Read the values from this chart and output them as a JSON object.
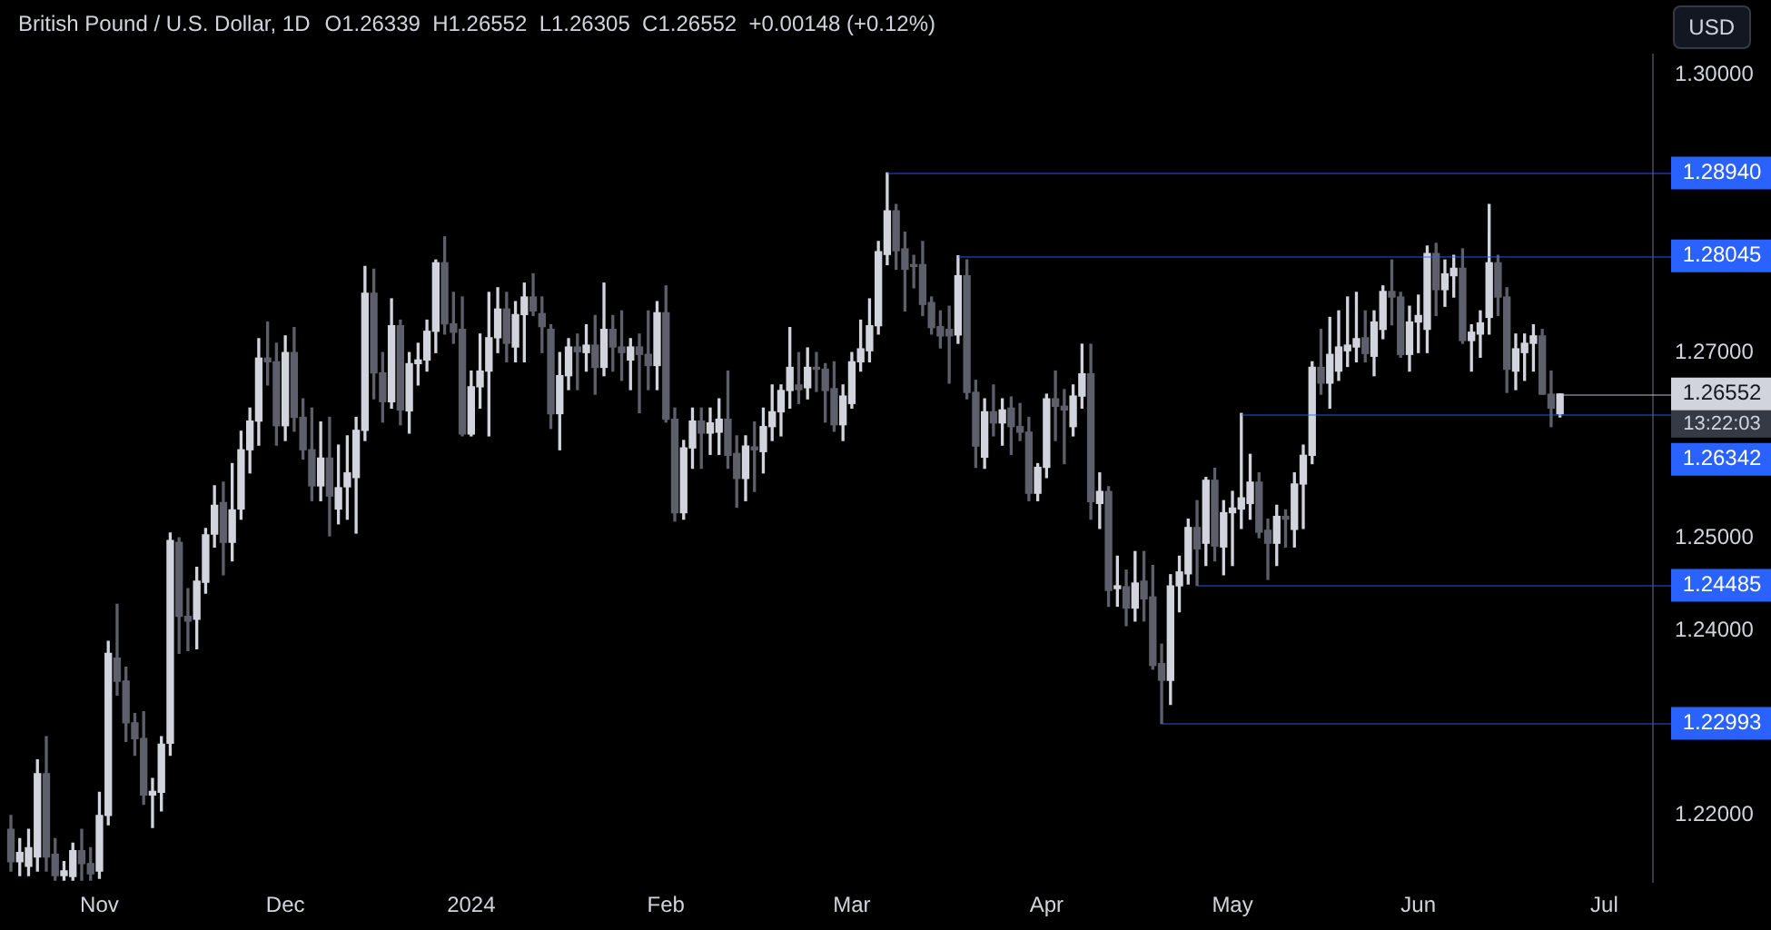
{
  "chart_data": {
    "type": "candlestick",
    "title": "British Pound / U.S. Dollar, 1D",
    "subtitle": "O1.26339  H1.26552  L1.26305  C1.26552  +0.00148 (+0.12%)",
    "ylabel": "USD",
    "categories": [
      null,
      null,
      null,
      null,
      null,
      null,
      null,
      null,
      null,
      null,
      "Nov",
      null,
      null,
      null,
      null,
      null,
      null,
      null,
      null,
      null,
      null,
      null,
      null,
      null,
      null,
      null,
      null,
      null,
      null,
      null,
      null,
      "Dec",
      null,
      null,
      null,
      null,
      null,
      null,
      null,
      null,
      null,
      null,
      null,
      null,
      null,
      null,
      null,
      null,
      null,
      null,
      null,
      null,
      "2024",
      null,
      null,
      null,
      null,
      null,
      null,
      null,
      null,
      null,
      null,
      null,
      null,
      null,
      null,
      null,
      null,
      null,
      null,
      null,
      null,
      null,
      "Feb",
      null,
      null,
      null,
      null,
      null,
      null,
      null,
      null,
      null,
      null,
      null,
      null,
      null,
      null,
      null,
      null,
      null,
      null,
      null,
      null,
      "Mar",
      null,
      null,
      null,
      null,
      null,
      null,
      null,
      null,
      null,
      null,
      null,
      null,
      null,
      null,
      null,
      null,
      null,
      null,
      null,
      null,
      null,
      "Apr",
      null,
      null,
      null,
      null,
      null,
      null,
      null,
      null,
      null,
      null,
      null,
      null,
      null,
      null,
      null,
      null,
      null,
      null,
      null,
      null,
      "May",
      null,
      null,
      null,
      null,
      null,
      null,
      null,
      null,
      null,
      null,
      null,
      null,
      null,
      null,
      null,
      null,
      null,
      null,
      null,
      null,
      "Jun",
      null,
      null,
      null,
      null,
      null,
      null,
      null,
      null,
      null,
      null,
      null,
      null,
      null,
      null,
      null,
      null,
      null,
      null,
      null,
      null,
      "Jul",
      null,
      null,
      null,
      null,
      null
    ],
    "ohlc": [
      [
        1.2185,
        1.22,
        1.214,
        1.215
      ],
      [
        1.215,
        1.2175,
        1.2135,
        1.216
      ],
      [
        1.2145,
        1.2185,
        1.2135,
        1.2165
      ],
      [
        1.2155,
        1.226,
        1.214,
        1.2245
      ],
      [
        1.2245,
        1.2285,
        1.214,
        1.2155
      ],
      [
        1.2158,
        1.2175,
        1.213,
        1.2135
      ],
      [
        1.2135,
        1.215,
        1.213,
        1.214
      ],
      [
        1.2134,
        1.217,
        1.213,
        1.2162
      ],
      [
        1.2162,
        1.2185,
        1.213,
        1.2148
      ],
      [
        1.2148,
        1.2165,
        1.213,
        1.2137
      ],
      [
        1.214,
        1.2225,
        1.2132,
        1.22
      ],
      [
        1.22,
        1.2388,
        1.219,
        1.2375
      ],
      [
        1.237,
        1.2428,
        1.233,
        1.2345
      ],
      [
        1.2345,
        1.236,
        1.228,
        1.23
      ],
      [
        1.23,
        1.231,
        1.2265,
        1.2283
      ],
      [
        1.2283,
        1.2312,
        1.2212,
        1.2222
      ],
      [
        1.2222,
        1.224,
        1.2187,
        1.2226
      ],
      [
        1.2225,
        1.2285,
        1.2205,
        1.2277
      ],
      [
        1.2278,
        1.2505,
        1.2265,
        1.2497
      ],
      [
        1.2495,
        1.25,
        1.2375,
        1.2415
      ],
      [
        1.2415,
        1.2445,
        1.2378,
        1.241
      ],
      [
        1.2412,
        1.2468,
        1.238,
        1.2453
      ],
      [
        1.2452,
        1.251,
        1.244,
        1.2503
      ],
      [
        1.2504,
        1.2556,
        1.249,
        1.2535
      ],
      [
        1.2538,
        1.256,
        1.246,
        1.2495
      ],
      [
        1.2495,
        1.258,
        1.2475,
        1.253
      ],
      [
        1.2531,
        1.2615,
        1.252,
        1.2595
      ],
      [
        1.2595,
        1.264,
        1.257,
        1.2626
      ],
      [
        1.2626,
        1.2715,
        1.26,
        1.2694
      ],
      [
        1.2694,
        1.2733,
        1.2665,
        1.269
      ],
      [
        1.269,
        1.271,
        1.26,
        1.2621
      ],
      [
        1.2621,
        1.2718,
        1.2605,
        1.27
      ],
      [
        1.27,
        1.2727,
        1.2615,
        1.263
      ],
      [
        1.263,
        1.265,
        1.2585,
        1.2595
      ],
      [
        1.2595,
        1.264,
        1.254,
        1.2556
      ],
      [
        1.2556,
        1.2625,
        1.254,
        1.2586
      ],
      [
        1.2586,
        1.263,
        1.2502,
        1.2545
      ],
      [
        1.2531,
        1.26,
        1.2515,
        1.2554
      ],
      [
        1.2555,
        1.261,
        1.252,
        1.257
      ],
      [
        1.2565,
        1.263,
        1.2505,
        1.2616
      ],
      [
        1.2616,
        1.2793,
        1.2605,
        1.2764
      ],
      [
        1.2764,
        1.279,
        1.265,
        1.2678
      ],
      [
        1.2678,
        1.27,
        1.2625,
        1.2647
      ],
      [
        1.2647,
        1.2758,
        1.264,
        1.2729
      ],
      [
        1.2729,
        1.2735,
        1.2622,
        1.2638
      ],
      [
        1.2637,
        1.27,
        1.2613,
        1.2688
      ],
      [
        1.2688,
        1.271,
        1.2665,
        1.2692
      ],
      [
        1.2692,
        1.2735,
        1.268,
        1.2723
      ],
      [
        1.2723,
        1.28,
        1.27,
        1.2797
      ],
      [
        1.2797,
        1.2825,
        1.272,
        1.2731
      ],
      [
        1.2731,
        1.2765,
        1.271,
        1.2722
      ],
      [
        1.2725,
        1.276,
        1.261,
        1.2612
      ],
      [
        1.2612,
        1.268,
        1.261,
        1.2663
      ],
      [
        1.2663,
        1.272,
        1.264,
        1.268
      ],
      [
        1.268,
        1.2765,
        1.261,
        1.2716
      ],
      [
        1.2716,
        1.277,
        1.27,
        1.2747
      ],
      [
        1.2747,
        1.2765,
        1.269,
        1.271
      ],
      [
        1.2706,
        1.2755,
        1.269,
        1.2741
      ],
      [
        1.2741,
        1.2775,
        1.269,
        1.276
      ],
      [
        1.276,
        1.2785,
        1.274,
        1.2745
      ],
      [
        1.2742,
        1.276,
        1.27,
        1.2728
      ],
      [
        1.2725,
        1.273,
        1.2618,
        1.2634
      ],
      [
        1.2634,
        1.27,
        1.2595,
        1.2675
      ],
      [
        1.2675,
        1.2715,
        1.266,
        1.2706
      ],
      [
        1.2706,
        1.272,
        1.266,
        1.2701
      ],
      [
        1.27,
        1.273,
        1.268,
        1.2708
      ],
      [
        1.2708,
        1.274,
        1.2655,
        1.2684
      ],
      [
        1.2684,
        1.2775,
        1.2675,
        1.2725
      ],
      [
        1.2725,
        1.274,
        1.268,
        1.2706
      ],
      [
        1.2706,
        1.2745,
        1.267,
        1.27
      ],
      [
        1.2692,
        1.2715,
        1.266,
        1.2706
      ],
      [
        1.2706,
        1.272,
        1.2635,
        1.2698
      ],
      [
        1.2698,
        1.2745,
        1.266,
        1.2686
      ],
      [
        1.2686,
        1.2755,
        1.266,
        1.2743
      ],
      [
        1.2743,
        1.2772,
        1.2625,
        1.2628
      ],
      [
        1.2628,
        1.264,
        1.2518,
        1.2527
      ],
      [
        1.2527,
        1.2605,
        1.252,
        1.2597
      ],
      [
        1.2597,
        1.264,
        1.2575,
        1.2626
      ],
      [
        1.2626,
        1.264,
        1.2575,
        1.2613
      ],
      [
        1.2613,
        1.264,
        1.259,
        1.2624
      ],
      [
        1.2614,
        1.265,
        1.259,
        1.2628
      ],
      [
        1.2628,
        1.268,
        1.2575,
        1.2589
      ],
      [
        1.2591,
        1.261,
        1.2533,
        1.2564
      ],
      [
        1.2564,
        1.261,
        1.254,
        1.2599
      ],
      [
        1.2598,
        1.2625,
        1.255,
        1.2595
      ],
      [
        1.2593,
        1.264,
        1.257,
        1.262
      ],
      [
        1.262,
        1.2665,
        1.2605,
        1.2636
      ],
      [
        1.2636,
        1.2665,
        1.261,
        1.2659
      ],
      [
        1.2659,
        1.2727,
        1.264,
        1.2684
      ],
      [
        1.2665,
        1.27,
        1.2645,
        1.266
      ],
      [
        1.2662,
        1.2705,
        1.265,
        1.2684
      ],
      [
        1.2684,
        1.27,
        1.2658,
        1.2682
      ],
      [
        1.2682,
        1.2688,
        1.2625,
        1.2659
      ],
      [
        1.2661,
        1.269,
        1.2615,
        1.2622
      ],
      [
        1.2622,
        1.2665,
        1.2605,
        1.2653
      ],
      [
        1.2645,
        1.27,
        1.264,
        1.269
      ],
      [
        1.269,
        1.2735,
        1.268,
        1.2704
      ],
      [
        1.2702,
        1.2758,
        1.269,
        1.2729
      ],
      [
        1.2729,
        1.282,
        1.272,
        1.2809
      ],
      [
        1.2806,
        1.2894,
        1.2795,
        1.2853
      ],
      [
        1.2853,
        1.286,
        1.279,
        1.281
      ],
      [
        1.2812,
        1.283,
        1.2745,
        1.279
      ],
      [
        1.2795,
        1.2805,
        1.277,
        1.2793
      ],
      [
        1.2795,
        1.282,
        1.274,
        1.2752
      ],
      [
        1.2754,
        1.276,
        1.272,
        1.2727
      ],
      [
        1.2728,
        1.2745,
        1.2705,
        1.2718
      ],
      [
        1.2725,
        1.275,
        1.2667,
        1.2718
      ],
      [
        1.2719,
        1.28045,
        1.271,
        1.2783
      ],
      [
        1.2783,
        1.28,
        1.265,
        1.2657
      ],
      [
        1.2657,
        1.267,
        1.2576,
        1.2599
      ],
      [
        1.2587,
        1.265,
        1.2575,
        1.2636
      ],
      [
        1.2636,
        1.2665,
        1.261,
        1.2624
      ],
      [
        1.2624,
        1.265,
        1.26,
        1.2638
      ],
      [
        1.264,
        1.2652,
        1.259,
        1.262
      ],
      [
        1.262,
        1.2645,
        1.2605,
        1.2614
      ],
      [
        1.2614,
        1.263,
        1.254,
        1.2548
      ],
      [
        1.2548,
        1.258,
        1.254,
        1.2576
      ],
      [
        1.2576,
        1.2655,
        1.2565,
        1.265
      ],
      [
        1.265,
        1.268,
        1.2605,
        1.2642
      ],
      [
        1.2642,
        1.266,
        1.258,
        1.2638
      ],
      [
        1.262,
        1.2665,
        1.261,
        1.2653
      ],
      [
        1.2653,
        1.2709,
        1.264,
        1.2677
      ],
      [
        1.2677,
        1.2709,
        1.252,
        1.2539
      ],
      [
        1.2537,
        1.257,
        1.251,
        1.255
      ],
      [
        1.255,
        1.2555,
        1.2426,
        1.2443
      ],
      [
        1.2445,
        1.248,
        1.2426,
        1.2448
      ],
      [
        1.2447,
        1.2465,
        1.2405,
        1.2424
      ],
      [
        1.2424,
        1.2485,
        1.241,
        1.2451
      ],
      [
        1.2453,
        1.2485,
        1.241,
        1.2434
      ],
      [
        1.2436,
        1.247,
        1.2358,
        1.2362
      ],
      [
        1.2364,
        1.2385,
        1.22993,
        1.2346
      ],
      [
        1.2346,
        1.246,
        1.232,
        1.2448
      ],
      [
        1.2448,
        1.248,
        1.242,
        1.2463
      ],
      [
        1.2461,
        1.252,
        1.245,
        1.2511
      ],
      [
        1.2511,
        1.254,
        1.24485,
        1.2488
      ],
      [
        1.2494,
        1.2565,
        1.247,
        1.2562
      ],
      [
        1.2562,
        1.2575,
        1.2475,
        1.2491
      ],
      [
        1.249,
        1.254,
        1.246,
        1.2527
      ],
      [
        1.2527,
        1.255,
        1.247,
        1.2532
      ],
      [
        1.2531,
        1.26342,
        1.251,
        1.2543
      ],
      [
        1.2537,
        1.259,
        1.252,
        1.256
      ],
      [
        1.256,
        1.257,
        1.25,
        1.2506
      ],
      [
        1.2508,
        1.252,
        1.2455,
        1.2494
      ],
      [
        1.2494,
        1.2535,
        1.247,
        1.2523
      ],
      [
        1.2523,
        1.253,
        1.249,
        1.252
      ],
      [
        1.2509,
        1.257,
        1.249,
        1.2558
      ],
      [
        1.2558,
        1.26,
        1.251,
        1.2589
      ],
      [
        1.2589,
        1.269,
        1.258,
        1.2684
      ],
      [
        1.2684,
        1.2725,
        1.2655,
        1.2667
      ],
      [
        1.2667,
        1.2738,
        1.264,
        1.2698
      ],
      [
        1.268,
        1.2745,
        1.267,
        1.2706
      ],
      [
        1.2702,
        1.276,
        1.2685,
        1.2708
      ],
      [
        1.2706,
        1.2765,
        1.269,
        1.2715
      ],
      [
        1.2716,
        1.2745,
        1.269,
        1.2699
      ],
      [
        1.2696,
        1.2745,
        1.2675,
        1.2733
      ],
      [
        1.2725,
        1.2772,
        1.2715,
        1.2766
      ],
      [
        1.2766,
        1.28,
        1.273,
        1.276
      ],
      [
        1.276,
        1.2765,
        1.2695,
        1.2698
      ],
      [
        1.2698,
        1.275,
        1.268,
        1.2733
      ],
      [
        1.2733,
        1.2762,
        1.27,
        1.274
      ],
      [
        1.2725,
        1.2815,
        1.27,
        1.2807
      ],
      [
        1.2807,
        1.2818,
        1.274,
        1.2768
      ],
      [
        1.2768,
        1.28,
        1.275,
        1.2785
      ],
      [
        1.2783,
        1.2805,
        1.276,
        1.2791
      ],
      [
        1.2791,
        1.2812,
        1.271,
        1.2713
      ],
      [
        1.2713,
        1.273,
        1.268,
        1.2722
      ],
      [
        1.272,
        1.2745,
        1.2695,
        1.2732
      ],
      [
        1.2738,
        1.286,
        1.272,
        1.2797
      ],
      [
        1.2797,
        1.2805,
        1.274,
        1.276
      ],
      [
        1.276,
        1.277,
        1.2657,
        1.2682
      ],
      [
        1.268,
        1.272,
        1.266,
        1.2704
      ],
      [
        1.27,
        1.272,
        1.267,
        1.271
      ],
      [
        1.271,
        1.273,
        1.268,
        1.2718
      ],
      [
        1.2718,
        1.2725,
        1.2655,
        1.2655
      ],
      [
        1.2655,
        1.268,
        1.262,
        1.264
      ],
      [
        1.26339,
        1.26552,
        1.26305,
        1.26552
      ],
      null,
      null,
      null,
      null,
      null,
      null,
      null,
      null,
      null,
      null
    ],
    "colors": [
      "#5d606b",
      "#d1d4dc",
      "#d1d4dc",
      "#d1d4dc",
      "#5d606b",
      "#5d606b",
      "#d1d4dc",
      "#d1d4dc",
      "#5d606b",
      "#5d606b",
      "#d1d4dc",
      "#d1d4dc",
      "#5d606b",
      "#5d606b",
      "#5d606b",
      "#5d606b",
      "#d1d4dc",
      "#d1d4dc",
      "#d1d4dc",
      "#5d606b",
      "#5d606b",
      "#d1d4dc",
      "#d1d4dc",
      "#d1d4dc",
      "#5d606b",
      "#d1d4dc",
      "#d1d4dc",
      "#d1d4dc",
      "#d1d4dc",
      "#5d606b",
      "#5d606b",
      "#d1d4dc",
      "#5d606b",
      "#5d606b",
      "#5d606b",
      "#d1d4dc",
      "#5d606b",
      "#d1d4dc",
      "#d1d4dc",
      "#d1d4dc",
      "#d1d4dc",
      "#5d606b",
      "#5d606b",
      "#d1d4dc",
      "#5d606b",
      "#d1d4dc",
      "#d1d4dc",
      "#d1d4dc",
      "#d1d4dc",
      "#5d606b",
      "#5d606b",
      "#5d606b",
      "#d1d4dc",
      "#d1d4dc",
      "#d1d4dc",
      "#d1d4dc",
      "#5d606b",
      "#d1d4dc",
      "#d1d4dc",
      "#5d606b",
      "#5d606b",
      "#5d606b",
      "#d1d4dc",
      "#d1d4dc",
      "#5d606b",
      "#d1d4dc",
      "#5d606b",
      "#d1d4dc",
      "#5d606b",
      "#5d606b",
      "#d1d4dc",
      "#5d606b",
      "#5d606b",
      "#d1d4dc",
      "#5d606b",
      "#5d606b",
      "#d1d4dc",
      "#d1d4dc",
      "#5d606b",
      "#d1d4dc",
      "#d1d4dc",
      "#5d606b",
      "#5d606b",
      "#d1d4dc",
      "#5d606b",
      "#d1d4dc",
      "#d1d4dc",
      "#d1d4dc",
      "#d1d4dc",
      "#5d606b",
      "#d1d4dc",
      "#5d606b",
      "#5d606b",
      "#5d606b",
      "#d1d4dc",
      "#d1d4dc",
      "#d1d4dc",
      "#d1d4dc",
      "#d1d4dc",
      "#d1d4dc",
      "#5d606b",
      "#5d606b",
      "#5d606b",
      "#5d606b",
      "#5d606b",
      "#5d606b",
      "#5d606b",
      "#d1d4dc",
      "#5d606b",
      "#5d606b",
      "#d1d4dc",
      "#5d606b",
      "#d1d4dc",
      "#5d606b",
      "#5d606b",
      "#5d606b",
      "#d1d4dc",
      "#d1d4dc",
      "#5d606b",
      "#5d606b",
      "#d1d4dc",
      "#d1d4dc",
      "#5d606b",
      "#d1d4dc",
      "#5d606b",
      "#d1d4dc",
      "#5d606b",
      "#d1d4dc",
      "#5d606b",
      "#5d606b",
      "#5d606b",
      "#d1d4dc",
      "#d1d4dc",
      "#d1d4dc",
      "#5d606b",
      "#d1d4dc",
      "#5d606b",
      "#d1d4dc",
      "#d1d4dc",
      "#d1d4dc",
      "#d1d4dc",
      "#5d606b",
      "#5d606b",
      "#d1d4dc",
      "#5d606b",
      "#d1d4dc",
      "#d1d4dc",
      "#d1d4dc",
      "#5d606b",
      "#d1d4dc",
      "#d1d4dc",
      "#d1d4dc",
      "#d1d4dc",
      "#5d606b",
      "#d1d4dc",
      "#d1d4dc",
      "#5d606b",
      "#5d606b",
      "#d1d4dc",
      "#d1d4dc",
      "#d1d4dc",
      "#5d606b",
      "#d1d4dc",
      "#d1d4dc",
      "#5d606b",
      "#d1d4dc",
      "#d1d4dc",
      "#d1d4dc",
      "#5d606b",
      "#5d606b",
      "#d1d4dc",
      "#d1d4dc",
      "#d1d4dc",
      "#5d606b",
      "#5d606b",
      "#d1d4dc",
      null,
      null,
      null,
      null,
      null,
      null,
      null,
      null,
      null,
      null
    ],
    "ylim": [
      1.2128,
      1.3022
    ],
    "yticks": [
      {
        "value": 1.3,
        "label": "1.30000"
      },
      {
        "value": 1.27,
        "label": "1.27000"
      },
      {
        "value": 1.25,
        "label": "1.25000"
      },
      {
        "value": 1.24,
        "label": "1.24000"
      },
      {
        "value": 1.22,
        "label": "1.22000"
      }
    ],
    "ref_lines": [
      {
        "axis": "y",
        "value": 1.2894,
        "label": "1.28940",
        "color": "#2962ff"
      },
      {
        "axis": "y",
        "value": 1.28045,
        "label": "1.28045",
        "color": "#2962ff"
      },
      {
        "axis": "y",
        "value": 1.26552,
        "label": "1.26552",
        "color": "#d1d4dc"
      },
      {
        "axis": "y",
        "value": 1.26342,
        "label": "1.26342",
        "color": "#2962ff"
      },
      {
        "axis": "y",
        "value": 1.24485,
        "label": "1.24485",
        "color": "#2962ff"
      },
      {
        "axis": "y",
        "value": 1.22993,
        "label": "1.22993",
        "color": "#2962ff"
      }
    ],
    "annotations": [
      "13:22:03"
    ]
  }
}
